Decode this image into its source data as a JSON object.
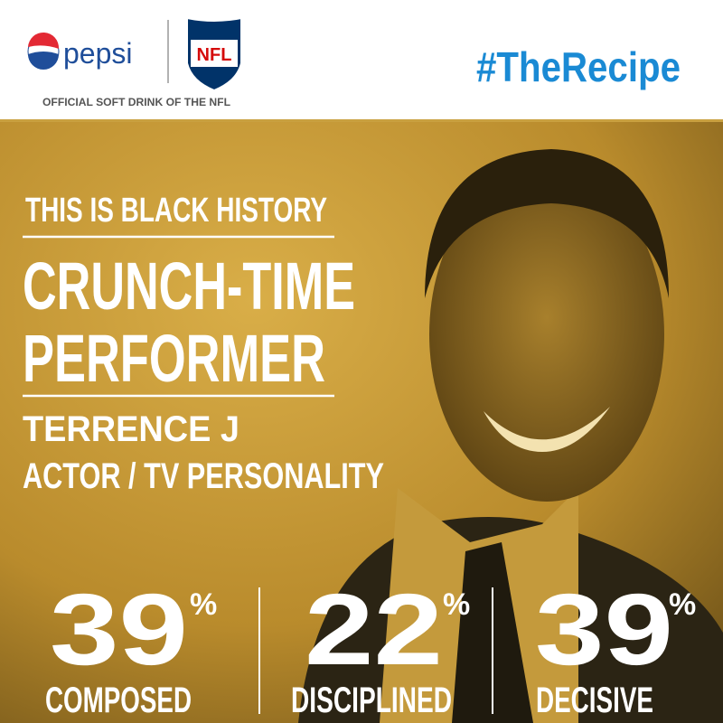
{
  "header": {
    "brand": "pepsi",
    "league": "NFL",
    "tagline": "OFFICIAL SOFT DRINK OF THE NFL",
    "hashtag": "#TheRecipe"
  },
  "headline": {
    "kicker": "THIS IS BLACK HISTORY",
    "title_lines": [
      "CRUNCH-TIME",
      "PERFORMER"
    ],
    "name": "TERRENCE J",
    "role": "ACTOR / TV PERSONALITY"
  },
  "stats": [
    {
      "value": 39,
      "unit": "%",
      "label": "COMPOSED"
    },
    {
      "value": 22,
      "unit": "%",
      "label": "DISCIPLINED"
    },
    {
      "value": 39,
      "unit": "%",
      "label": "DECISIVE"
    }
  ]
}
